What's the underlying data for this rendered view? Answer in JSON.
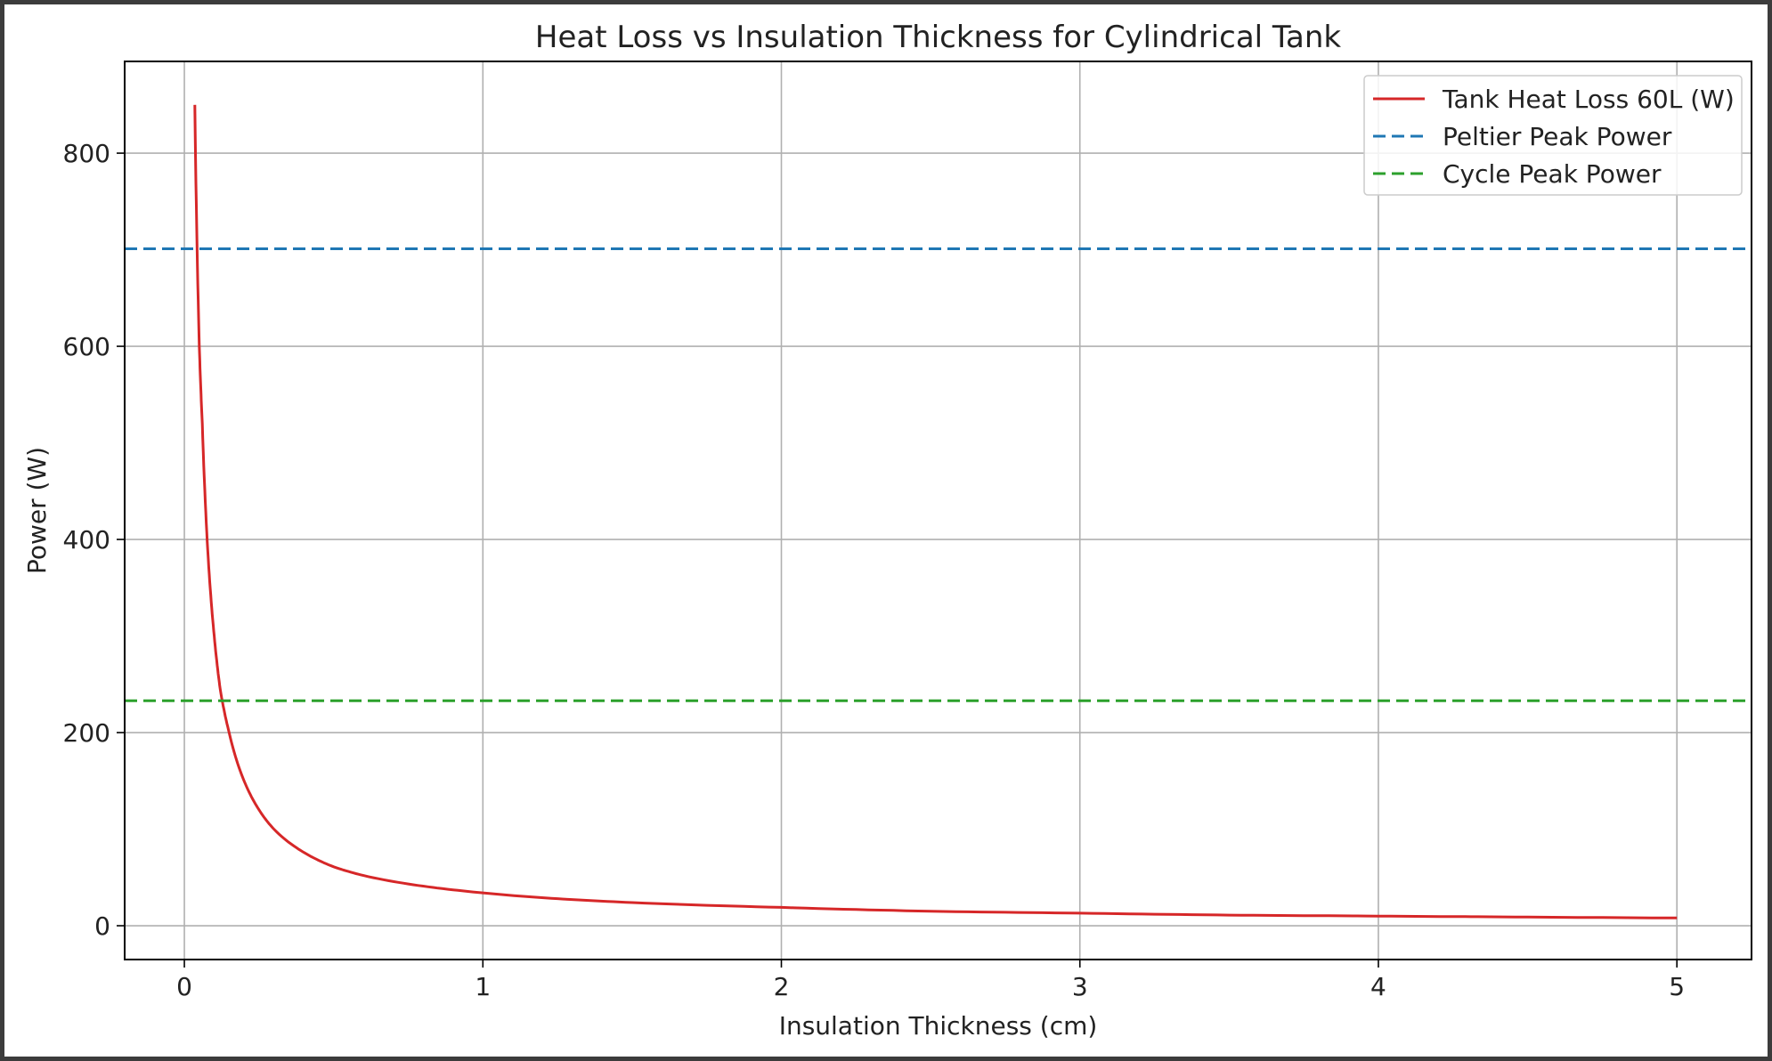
{
  "chart_data": {
    "type": "line",
    "title": "Heat Loss vs Insulation Thickness for Cylindrical Tank",
    "xlabel": "Insulation Thickness (cm)",
    "ylabel": "Power (W)",
    "xlim": [
      -0.2,
      5.25
    ],
    "ylim": [
      -35,
      895
    ],
    "xticks": [
      0,
      1,
      2,
      3,
      4,
      5
    ],
    "yticks": [
      0,
      200,
      400,
      600,
      800
    ],
    "grid": true,
    "legend_position": "top-right",
    "series": [
      {
        "name": "Tank Heat Loss 60L (W)",
        "color": "#d62728",
        "style": "solid",
        "x": [
          0.035,
          0.05,
          0.06,
          0.08,
          0.1,
          0.12,
          0.15,
          0.2,
          0.25,
          0.3,
          0.4,
          0.5,
          0.6,
          0.8,
          1.0,
          1.25,
          1.5,
          2.0,
          2.5,
          3.0,
          3.5,
          4.0,
          4.5,
          5.0
        ],
        "y": [
          850,
          600,
          520,
          380,
          300,
          245,
          200,
          150,
          120,
          100,
          76,
          61,
          52,
          41,
          34,
          28,
          24,
          19,
          15,
          13,
          11,
          10,
          9,
          8
        ]
      },
      {
        "name": "Peltier Peak Power",
        "color": "#1f77b4",
        "style": "dashed",
        "hline": 701
      },
      {
        "name": "Cycle Peak Power",
        "color": "#2ca02c",
        "style": "dashed",
        "hline": 233
      }
    ]
  }
}
